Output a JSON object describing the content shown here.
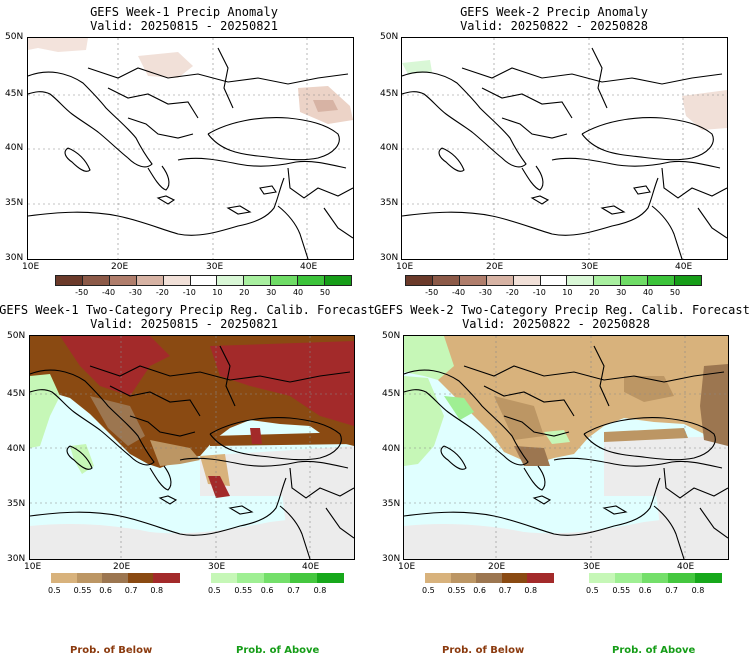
{
  "panels": [
    {
      "title": "GEFS Week-1 Precip Anomaly",
      "valid": "Valid: 20250815 - 20250821"
    },
    {
      "title": "GEFS Week-2 Precip Anomaly",
      "valid": "Valid: 20250822 - 20250828"
    },
    {
      "title": "GEFS Week-1 Two-Category Precip Reg. Calib. Forecast",
      "valid": "Valid: 20250815 - 20250821"
    },
    {
      "title": "GEFS Week-2 Two-Category Precip Reg. Calib. Forecast",
      "valid": "Valid: 20250822 - 20250828"
    }
  ],
  "axes": {
    "lat_labels": [
      "50N",
      "45N",
      "40N",
      "35N",
      "30N"
    ],
    "lon_labels": [
      "10E",
      "20E",
      "30E",
      "40E"
    ]
  },
  "anomaly_colorbar": {
    "ticks": [
      "-50",
      "-40",
      "-30",
      "-20",
      "-10",
      "10",
      "20",
      "30",
      "40",
      "50"
    ],
    "colors": [
      "#6b3a2a",
      "#8c5a48",
      "#b07e6c",
      "#d7b3a4",
      "#f1e0d8",
      "#ffffff",
      "#d9f7d6",
      "#a8ef9f",
      "#6fdc66",
      "#3cc33a",
      "#169d18"
    ]
  },
  "prob_colorbars": {
    "below": {
      "ticks": [
        "0.5",
        "0.55",
        "0.6",
        "0.7",
        "0.8"
      ],
      "colors": [
        "#d8b27c",
        "#bc9664",
        "#9c7650",
        "#8a4a12",
        "#a32a2a"
      ]
    },
    "above": {
      "ticks": [
        "0.5",
        "0.55",
        "0.6",
        "0.7",
        "0.8"
      ],
      "colors": [
        "#c6f7b7",
        "#9fef93",
        "#74df6a",
        "#45c73f",
        "#17a81b"
      ]
    }
  },
  "prob_labels": {
    "below": "Prob. of Below",
    "above": "Prob. of Above"
  },
  "map_colors": {
    "sea_cat": "#e0ffff",
    "land_nodata": "#ececec"
  }
}
